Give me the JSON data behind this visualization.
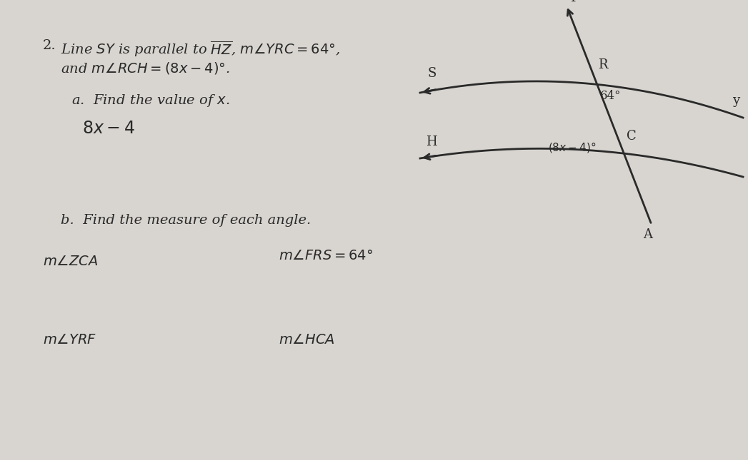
{
  "background_color": "#d8d5d0",
  "text_color": "#2a2a2a",
  "problem_num": "2.",
  "line1": "Line $SY$ is parallel to $\\overline{HZ}$, $m\\angle YRC = 64°$,",
  "line2": "and $m\\angle RCH = (8x - 4)°$.",
  "part_a": "a.  Find the value of $x$.",
  "answer_a": "$8x-4$",
  "part_b": "b.  Find the measure of each angle.",
  "angle_frs": "$m\\angle FRS = 64°$",
  "angle_zca": "$m\\angle ZCA$",
  "angle_yrf": "$m\\angle YRF$",
  "angle_hca": "$m\\angle HCA$",
  "label_F": "F",
  "label_R": "R",
  "label_S": "S",
  "label_Y": "y",
  "label_H": "H",
  "label_C": "C",
  "label_A": "A",
  "label_64": "64°",
  "label_8x4": "$(8x-4)°$"
}
